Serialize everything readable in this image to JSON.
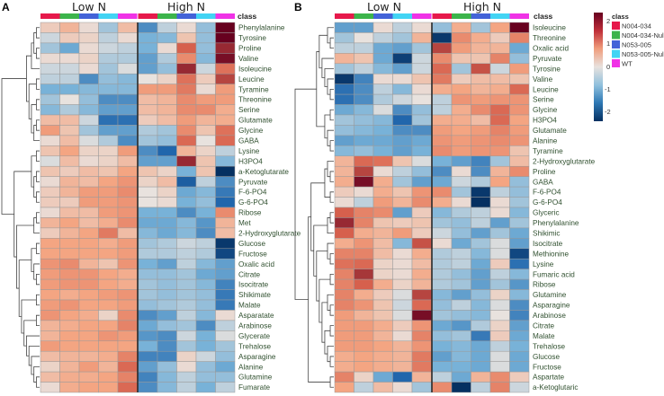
{
  "chart_data": {
    "type": "heatmap",
    "color_scale": {
      "min": -2,
      "max": 2,
      "ticks": [
        "2",
        "1",
        "0",
        "-1",
        "-2"
      ],
      "low_color": "#053061",
      "mid_color": "#e8e2de",
      "high_color": "#67001f"
    },
    "legend": {
      "title": "class",
      "items": [
        {
          "label": "N004-034",
          "color": "#e6194b"
        },
        {
          "label": "N004-034-Null",
          "color": "#3cb44b"
        },
        {
          "label": "N053-005",
          "color": "#4363d8"
        },
        {
          "label": "N053-005-Null",
          "color": "#42d4f4"
        },
        {
          "label": "WT",
          "color": "#f032e6"
        }
      ]
    },
    "panels": [
      {
        "panel_label": "A",
        "groups": [
          "Low N",
          "High N"
        ],
        "class_label": "class",
        "column_classes": [
          0,
          1,
          2,
          3,
          4,
          0,
          1,
          2,
          3,
          4
        ],
        "rows": [
          "Phenylalanine",
          "Tyrosine",
          "Proline",
          "Valine",
          "Isoleucine",
          "Leucine",
          "Tyramine",
          "Threonine",
          "Serine",
          "Glutamate",
          "Glycine",
          "GABA",
          "Lysine",
          "H3PO4",
          "a-Ketoglutarate",
          "Pyruvate",
          "F-6-PO4",
          "G-6-PO4",
          "Ribose",
          "Met",
          "2-Hydroxyglutarate",
          "Glucose",
          "Fructose",
          "Oxalic acid",
          "Citrate",
          "Isocitrate",
          "Shikimate",
          "Malate",
          "Asparatate",
          "Arabinose",
          "Glycerate",
          "Trehalose",
          "Asparagine",
          "Alanine",
          "Glutamine",
          "Fumarate"
        ],
        "values": [
          [
            0.3,
            0.6,
            0.1,
            -0.5,
            0.5,
            -1.2,
            -0.3,
            0.1,
            -0.6,
            2.3
          ],
          [
            -0.2,
            0.3,
            0.2,
            -0.3,
            0.1,
            -0.8,
            -0.7,
            0.4,
            -0.6,
            2.5
          ],
          [
            -0.5,
            -0.9,
            0.1,
            -0.2,
            -0.3,
            -0.8,
            0.1,
            1.6,
            -0.6,
            2.0
          ],
          [
            0.1,
            0.1,
            0.2,
            -0.4,
            -0.4,
            -1.0,
            -0.4,
            1.1,
            -0.7,
            2.2
          ],
          [
            -0.2,
            -0.2,
            0.1,
            -0.5,
            -0.1,
            -1.0,
            -0.6,
            2.0,
            -0.2,
            1.4
          ],
          [
            -0.3,
            -0.3,
            -1.2,
            -0.6,
            -0.7,
            0.0,
            0.2,
            1.4,
            0.3,
            1.8
          ],
          [
            -0.8,
            -0.8,
            -0.7,
            -0.7,
            -0.7,
            0.9,
            0.9,
            1.3,
            0.1,
            0.9
          ],
          [
            -0.5,
            0.0,
            -0.6,
            -1.2,
            -1.2,
            0.5,
            0.6,
            1.1,
            0.9,
            0.9
          ],
          [
            -0.7,
            -0.4,
            -0.7,
            -1.0,
            -1.0,
            0.5,
            0.6,
            1.1,
            1.1,
            0.7
          ],
          [
            0.5,
            0.5,
            -0.2,
            -1.5,
            -1.5,
            0.3,
            0.5,
            0.9,
            0.6,
            0.7
          ],
          [
            0.9,
            0.4,
            -0.5,
            -1.0,
            -1.0,
            -0.4,
            -0.5,
            1.1,
            0.4,
            1.4
          ],
          [
            0.1,
            0.5,
            -0.1,
            -0.4,
            -1.2,
            -0.5,
            -0.6,
            1.5,
            0.0,
            1.5
          ],
          [
            0.4,
            0.8,
            0.2,
            0.2,
            0.9,
            -1.2,
            -1.6,
            0.6,
            0.2,
            -0.3
          ],
          [
            -0.1,
            0.5,
            0.1,
            0.2,
            0.5,
            -1.0,
            -1.0,
            2.0,
            0.4,
            -0.7
          ],
          [
            0.4,
            0.3,
            0.5,
            0.4,
            0.8,
            0.4,
            0.2,
            -0.8,
            0.4,
            -2.5
          ],
          [
            0.1,
            0.6,
            0.5,
            0.8,
            1.0,
            0.2,
            0.5,
            -1.7,
            -0.3,
            -1.2
          ],
          [
            0.3,
            0.6,
            0.9,
            0.9,
            1.1,
            0.0,
            0.2,
            -0.9,
            -0.7,
            -1.4
          ],
          [
            0.3,
            0.3,
            0.9,
            0.9,
            1.0,
            0.0,
            0.1,
            -0.8,
            -0.6,
            -1.6
          ],
          [
            0.1,
            0.5,
            0.5,
            0.9,
            1.0,
            -0.8,
            -0.8,
            -1.2,
            -0.8,
            1.1
          ],
          [
            0.6,
            0.8,
            0.5,
            0.7,
            1.1,
            -0.9,
            -0.9,
            -0.7,
            -1.1,
            0.6
          ],
          [
            0.3,
            0.6,
            0.8,
            1.3,
            0.5,
            -0.7,
            -0.9,
            -0.7,
            -1.2,
            0.5
          ],
          [
            0.8,
            0.8,
            0.8,
            0.7,
            0.9,
            -0.5,
            -0.4,
            -0.2,
            -0.3,
            -2.2
          ],
          [
            0.8,
            0.8,
            0.8,
            0.8,
            0.9,
            -0.4,
            -0.4,
            -0.3,
            -0.4,
            -2.0
          ],
          [
            1.0,
            1.1,
            0.6,
            0.4,
            1.0,
            -0.8,
            -1.0,
            -0.3,
            -0.7,
            -1.0
          ],
          [
            0.9,
            1.0,
            1.0,
            0.8,
            0.7,
            -0.6,
            -0.6,
            -0.5,
            -0.9,
            -1.0
          ],
          [
            0.9,
            1.0,
            1.0,
            0.8,
            0.7,
            -0.5,
            -0.6,
            -0.5,
            -0.7,
            -1.3
          ],
          [
            0.8,
            0.7,
            0.8,
            0.9,
            1.0,
            -0.5,
            -0.6,
            -0.5,
            -0.6,
            -1.4
          ],
          [
            0.9,
            1.0,
            0.8,
            0.8,
            0.9,
            -0.6,
            -0.5,
            -0.4,
            -0.6,
            -1.4
          ],
          [
            1.0,
            0.8,
            0.7,
            0.2,
            1.1,
            -1.2,
            -1.0,
            -0.3,
            -0.7,
            0.1
          ],
          [
            0.6,
            0.7,
            0.8,
            0.8,
            1.2,
            -0.9,
            -0.6,
            -0.5,
            -1.2,
            -0.3
          ],
          [
            0.6,
            0.8,
            0.8,
            1.0,
            0.9,
            -1.1,
            -1.2,
            -0.2,
            -0.8,
            -0.1
          ],
          [
            0.9,
            0.8,
            0.8,
            0.8,
            0.8,
            -0.8,
            -1.2,
            -0.5,
            -0.8,
            -0.5
          ],
          [
            0.5,
            0.6,
            0.6,
            0.7,
            1.2,
            -1.3,
            -1.3,
            0.2,
            -0.2,
            -0.6
          ],
          [
            0.2,
            0.6,
            0.9,
            0.6,
            1.5,
            -1.0,
            -0.6,
            0.1,
            -0.6,
            -0.9
          ],
          [
            0.5,
            0.7,
            0.7,
            0.8,
            1.2,
            -1.3,
            -0.7,
            -0.3,
            -0.6,
            -0.6
          ],
          [
            0.1,
            0.7,
            0.8,
            0.8,
            1.5,
            -1.2,
            -0.7,
            -0.3,
            -0.8,
            -0.3
          ]
        ]
      },
      {
        "panel_label": "B",
        "groups": [
          "Low N",
          "High N"
        ],
        "class_label": "class",
        "column_classes": [
          0,
          1,
          2,
          3,
          4,
          0,
          1,
          2,
          3,
          4
        ],
        "rows": [
          "Isoleucine",
          "Threonine",
          "Oxalic acid",
          "Pyruvate",
          "Tyrosine",
          "Valine",
          "Leucine",
          "Serine",
          "Glycine",
          "H3PO4",
          "Glutamate",
          "Alanine",
          "Tyramine",
          "2-Hydroxyglutarate",
          "Proline",
          "GABA",
          "F-6-PO4",
          "G-6-PO4",
          "Glyceric",
          "Phenylalanine",
          "Shikimic",
          "Isocitrate",
          "Methionine",
          "Lysine",
          "Fumaric acid",
          "Ribose",
          "Glutamine",
          "Asparagine",
          "Arabinose",
          "Citrate",
          "Malate",
          "Trehalose",
          "Glucose",
          "Fructose",
          "Aspartate",
          "a-Ketoglutaric"
        ],
        "values": [
          [
            -1.0,
            -1.0,
            0.1,
            -0.3,
            0.1,
            -0.6,
            0.7,
            -0.5,
            0.8,
            2.4
          ],
          [
            -0.5,
            0.0,
            -0.3,
            -0.5,
            0.6,
            -2.2,
            1.1,
            0.7,
            0.3,
            1.2
          ],
          [
            -0.3,
            -0.3,
            -0.9,
            -1.0,
            -0.5,
            1.8,
            0.9,
            0.6,
            0.6,
            -0.9
          ],
          [
            0.6,
            0.4,
            -0.9,
            -2.1,
            -0.2,
            1.1,
            0.4,
            0.4,
            1.2,
            -0.6
          ],
          [
            -0.5,
            -0.3,
            -0.7,
            -1.0,
            -0.2,
            1.5,
            -0.5,
            1.7,
            -0.2,
            0.9
          ],
          [
            -2.2,
            -1.3,
            0.1,
            0.1,
            0.4,
            1.3,
            0.3,
            0.5,
            0.5,
            0.4
          ],
          [
            -1.5,
            -1.2,
            -0.3,
            -0.7,
            0.1,
            0.7,
            0.8,
            0.6,
            0.7,
            1.5
          ],
          [
            -1.5,
            -1.2,
            -0.4,
            -0.2,
            0.0,
            -0.3,
            1.0,
            0.9,
            1.0,
            1.0
          ],
          [
            -0.9,
            -0.7,
            -0.1,
            -1.2,
            -0.6,
            -0.3,
            0.7,
            1.1,
            1.5,
            1.0
          ],
          [
            -0.5,
            -0.6,
            -0.7,
            -1.6,
            -0.5,
            0.7,
            0.7,
            0.5,
            1.5,
            0.8
          ],
          [
            -0.6,
            -0.7,
            -0.8,
            -1.2,
            -1.2,
            0.9,
            0.8,
            0.9,
            1.2,
            0.9
          ],
          [
            -1.0,
            -0.9,
            -0.9,
            -1.0,
            -0.9,
            1.0,
            0.9,
            1.0,
            1.1,
            1.0
          ],
          [
            -0.7,
            -0.6,
            -0.8,
            -1.0,
            -0.8,
            1.1,
            0.9,
            1.0,
            1.0,
            0.4
          ],
          [
            0.6,
            1.5,
            1.4,
            0.4,
            -0.1,
            -0.8,
            -1.0,
            -1.3,
            -0.5,
            0.5
          ],
          [
            0.6,
            1.8,
            0.1,
            -0.3,
            -0.6,
            -1.2,
            0.1,
            -1.2,
            0.6,
            1.1
          ],
          [
            0.7,
            2.2,
            0.7,
            -0.5,
            -1.0,
            -0.9,
            -0.2,
            -0.4,
            0.8,
            -0.6
          ],
          [
            0.3,
            0.1,
            0.7,
            0.4,
            1.0,
            1.1,
            -0.5,
            -2.2,
            -0.3,
            -0.6
          ],
          [
            0.1,
            -0.3,
            0.9,
            0.6,
            1.1,
            0.7,
            0.1,
            -2.4,
            0.1,
            -0.5
          ],
          [
            1.6,
            1.2,
            1.1,
            -1.0,
            0.3,
            -0.7,
            -0.4,
            -0.3,
            0.1,
            -0.7
          ],
          [
            2.0,
            1.2,
            0.4,
            0.3,
            0.4,
            -0.5,
            -0.6,
            -0.3,
            -1.0,
            -0.5
          ],
          [
            1.6,
            0.7,
            0.6,
            0.9,
            0.3,
            -0.2,
            -0.6,
            -1.0,
            -0.5,
            -0.9
          ],
          [
            0.7,
            1.0,
            0.5,
            -0.7,
            1.7,
            0.1,
            -0.9,
            -0.5,
            -0.1,
            -1.0
          ],
          [
            1.2,
            1.2,
            0.5,
            0.1,
            0.7,
            -0.4,
            -0.3,
            -0.7,
            -0.1,
            -2.0
          ],
          [
            1.4,
            1.5,
            0.2,
            0.1,
            0.5,
            -0.4,
            -0.3,
            -0.9,
            0.3,
            -1.5
          ],
          [
            1.2,
            1.9,
            0.2,
            0.1,
            0.7,
            -0.4,
            -0.6,
            -1.0,
            -0.3,
            -0.7
          ],
          [
            1.2,
            1.6,
            0.7,
            0.2,
            0.6,
            -0.4,
            -0.5,
            -1.0,
            -0.5,
            -1.1
          ],
          [
            1.2,
            0.7,
            0.3,
            -0.1,
            1.8,
            -0.7,
            -1.0,
            -0.6,
            0.2,
            -0.7
          ],
          [
            1.2,
            1.0,
            0.4,
            -0.2,
            1.5,
            -0.6,
            -0.3,
            -0.7,
            -0.1,
            -1.2
          ],
          [
            0.9,
            0.6,
            0.4,
            -0.1,
            2.2,
            -0.5,
            -0.6,
            -0.7,
            0.0,
            -1.3
          ],
          [
            0.9,
            0.9,
            0.7,
            0.3,
            1.0,
            -0.9,
            -1.1,
            -0.4,
            0.2,
            -1.0
          ],
          [
            0.9,
            0.9,
            0.6,
            0.1,
            1.2,
            -0.6,
            -0.5,
            -1.4,
            0.3,
            -0.9
          ],
          [
            0.9,
            0.9,
            0.8,
            0.6,
            1.0,
            -0.8,
            -0.7,
            -0.9,
            -0.3,
            -0.8
          ],
          [
            0.7,
            0.8,
            0.7,
            0.6,
            1.3,
            -1.0,
            -0.7,
            -0.9,
            -0.1,
            -0.9
          ],
          [
            0.7,
            0.8,
            0.7,
            0.6,
            1.3,
            -0.8,
            -0.8,
            -0.9,
            -0.1,
            -0.9
          ],
          [
            1.2,
            0.2,
            -0.9,
            -1.6,
            0.6,
            -0.3,
            -0.9,
            0.6,
            1.1,
            0.3
          ],
          [
            0.8,
            -0.3,
            0.5,
            0.1,
            -0.5,
            1.1,
            -2.3,
            -0.3,
            1.2,
            -0.2
          ]
        ]
      }
    ]
  }
}
